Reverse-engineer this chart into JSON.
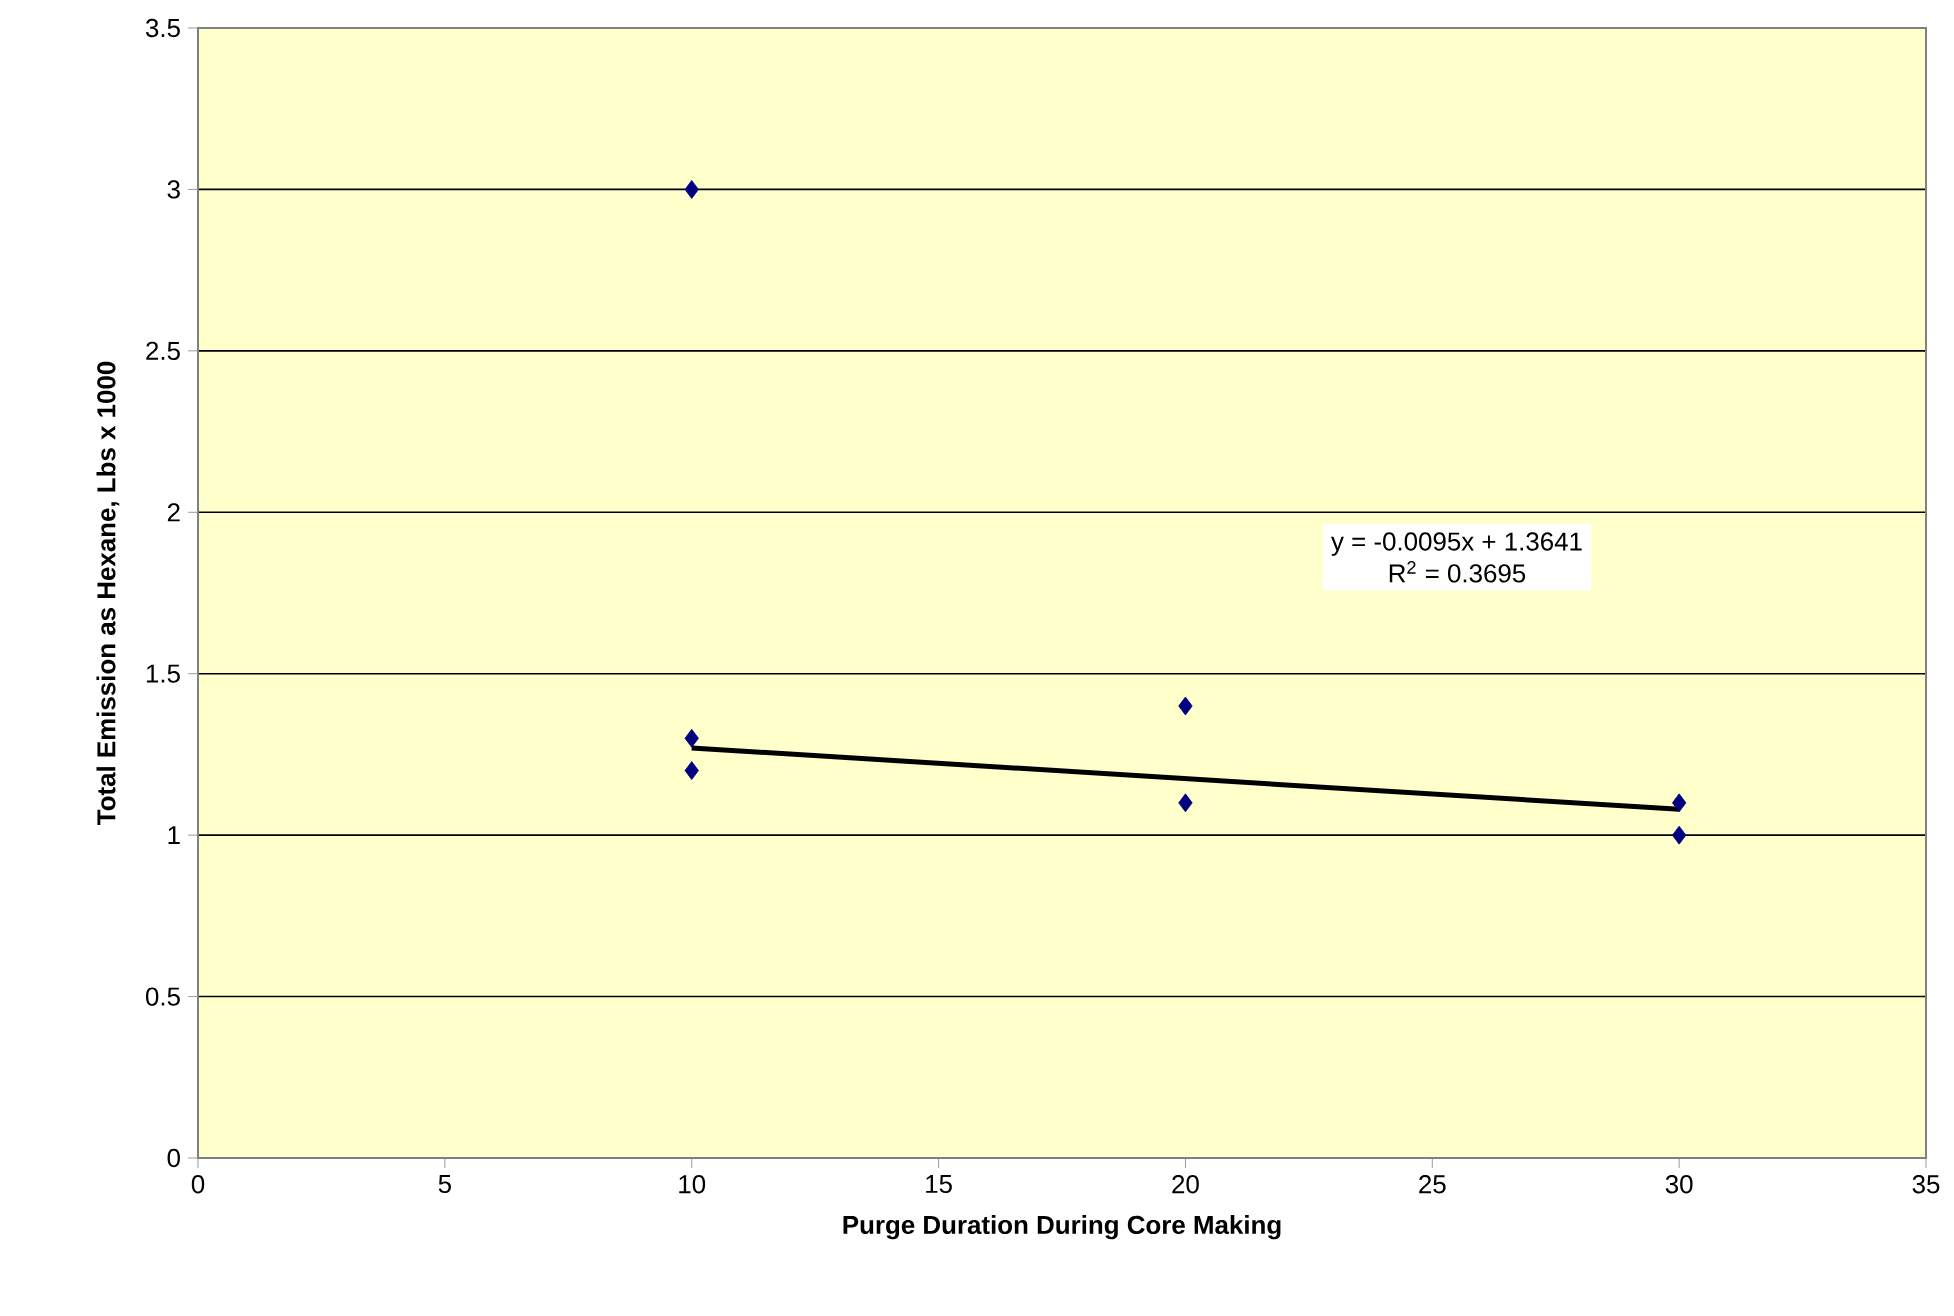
{
  "chart_data": {
    "type": "scatter",
    "xlabel": "Purge Duration During Core Making",
    "ylabel": "Total Emission as Hexane, Lbs x 1000",
    "xlim": [
      0,
      35
    ],
    "xticks": [
      0,
      5,
      10,
      15,
      20,
      25,
      30,
      35
    ],
    "ylim": [
      0,
      3.5
    ],
    "yticks": [
      0,
      0.5,
      1,
      1.5,
      2,
      2.5,
      3,
      3.5
    ],
    "grid": "y",
    "marker": "diamond",
    "series": [
      {
        "color": "#000080",
        "x": [
          10,
          10,
          10,
          20,
          20,
          30,
          30
        ],
        "values": [
          3.0,
          1.3,
          1.2,
          1.4,
          1.1,
          1.1,
          1.0
        ]
      },
      {
        "type": "line",
        "color": "#000000",
        "marker": "none",
        "x": [
          10,
          30
        ],
        "values": [
          1.27,
          1.08
        ]
      }
    ],
    "annotations": [
      "y = -0.0095x + 1.3641",
      "R$^{2}$ = 0.3695"
    ]
  }
}
